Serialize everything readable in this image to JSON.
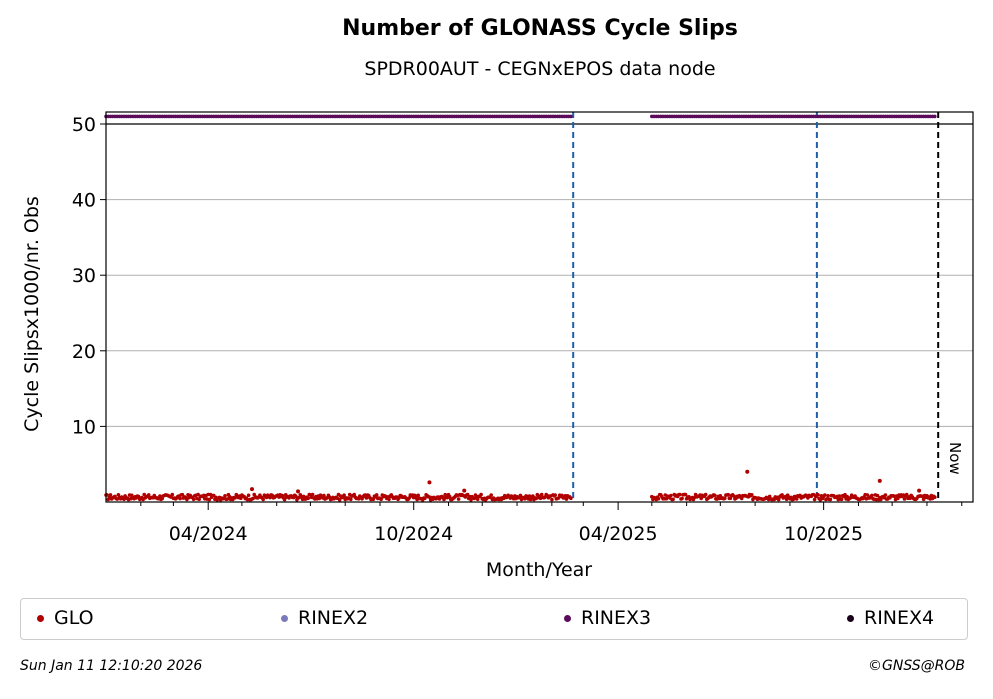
{
  "colors": {
    "glo": "#b00000",
    "rinex2": "#7b7bbb",
    "rinex3": "#5c0a5a",
    "rinex4": "#1a001a",
    "event_line": "#1f5fa8",
    "now_line": "#000000",
    "grid": "#b0b0b0"
  },
  "legend": {
    "items": [
      {
        "label": "GLO",
        "color": "#b00000"
      },
      {
        "label": "RINEX2",
        "color": "#7b7bbb"
      },
      {
        "label": "RINEX3",
        "color": "#5c0a5a"
      },
      {
        "label": "RINEX4",
        "color": "#1a001a"
      }
    ]
  },
  "footer": {
    "timestamp": "Sun Jan 11 12:10:20 2026",
    "credit": "©GNSS@ROB"
  },
  "chart_data": {
    "type": "scatter",
    "title": "Number of GLONASS Cycle Slips",
    "subtitle": "SPDR00AUT - CEGNxEPOS data node",
    "xlabel": "Month/Year",
    "ylabel": "Cycle Slipsx1000/nr. Obs",
    "xlim": [
      "2024-01-01",
      "2026-02-11"
    ],
    "ylim": [
      0,
      50
    ],
    "yticks": [
      10,
      20,
      30,
      40,
      50
    ],
    "xticks": [
      {
        "date": "2024-04-01",
        "label": "04/2024"
      },
      {
        "date": "2024-10-01",
        "label": "10/2024"
      },
      {
        "date": "2025-04-01",
        "label": "04/2025"
      },
      {
        "date": "2025-10-01",
        "label": "10/2025"
      }
    ],
    "minor_xticks": [
      "2024-02-01",
      "2024-03-01",
      "2024-05-01",
      "2024-06-01",
      "2024-07-01",
      "2024-08-01",
      "2024-09-01",
      "2024-11-01",
      "2024-12-01",
      "2025-01-01",
      "2025-02-01",
      "2025-03-01",
      "2025-05-01",
      "2025-06-01",
      "2025-07-01",
      "2025-08-01",
      "2025-09-01",
      "2025-11-01",
      "2025-12-01",
      "2026-01-01",
      "2026-02-01"
    ],
    "grid": "y",
    "event_lines": [
      "2025-02-20",
      "2025-09-25"
    ],
    "now_line": {
      "date": "2026-01-11",
      "label": "Now"
    },
    "series": [
      {
        "name": "GLO",
        "segments": [
          {
            "start": "2024-01-01",
            "end": "2025-02-18",
            "typical_range": [
              0.3,
              1.0
            ]
          },
          {
            "start": "2025-05-01",
            "end": "2026-01-08",
            "typical_range": [
              0.3,
              1.0
            ]
          }
        ],
        "outliers": [
          {
            "x": "2024-05-10",
            "y": 1.7
          },
          {
            "x": "2024-06-20",
            "y": 1.4
          },
          {
            "x": "2024-10-15",
            "y": 2.6
          },
          {
            "x": "2024-11-15",
            "y": 1.5
          },
          {
            "x": "2025-07-25",
            "y": 4.0
          },
          {
            "x": "2025-11-20",
            "y": 2.8
          },
          {
            "x": "2025-12-25",
            "y": 1.5
          }
        ]
      },
      {
        "name": "RINEX3",
        "y": 51,
        "segments": [
          {
            "start": "2024-01-01",
            "end": "2025-02-18"
          },
          {
            "start": "2025-05-01",
            "end": "2026-01-08"
          }
        ]
      }
    ],
    "legend_position": "bottom"
  }
}
